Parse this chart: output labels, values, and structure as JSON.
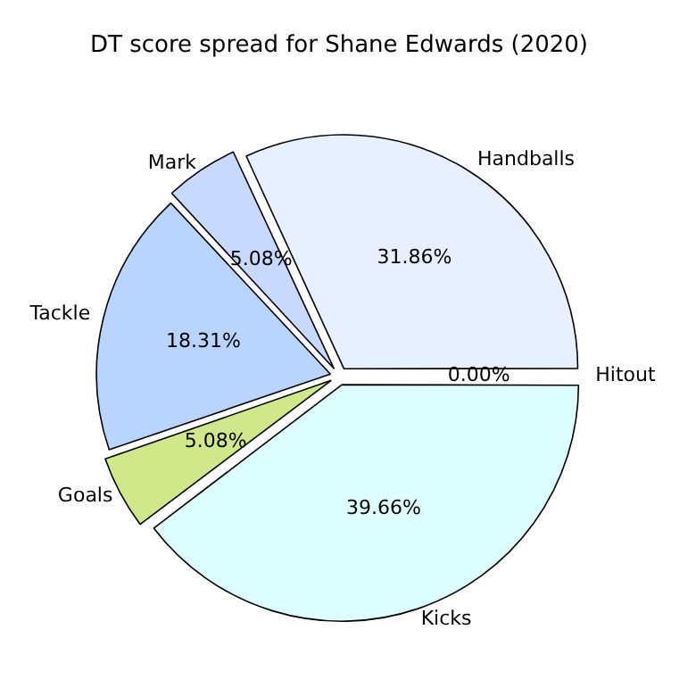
{
  "chart_data": {
    "type": "pie",
    "title": "DT score spread for Shane Edwards (2020)",
    "categories": [
      "Hitout",
      "Kicks",
      "Goals",
      "Tackle",
      "Mark",
      "Handballs"
    ],
    "values": [
      0.0,
      39.66,
      5.08,
      18.31,
      5.08,
      31.86
    ],
    "colors": [
      "#ffffff",
      "#ddffff",
      "#d0e88a",
      "#b8d4ff",
      "#c8d8ff",
      "#e8efff"
    ],
    "value_labels": [
      "0.00%",
      "39.66%",
      "5.08%",
      "18.31%",
      "5.08%",
      "31.86%"
    ],
    "legend": false
  }
}
